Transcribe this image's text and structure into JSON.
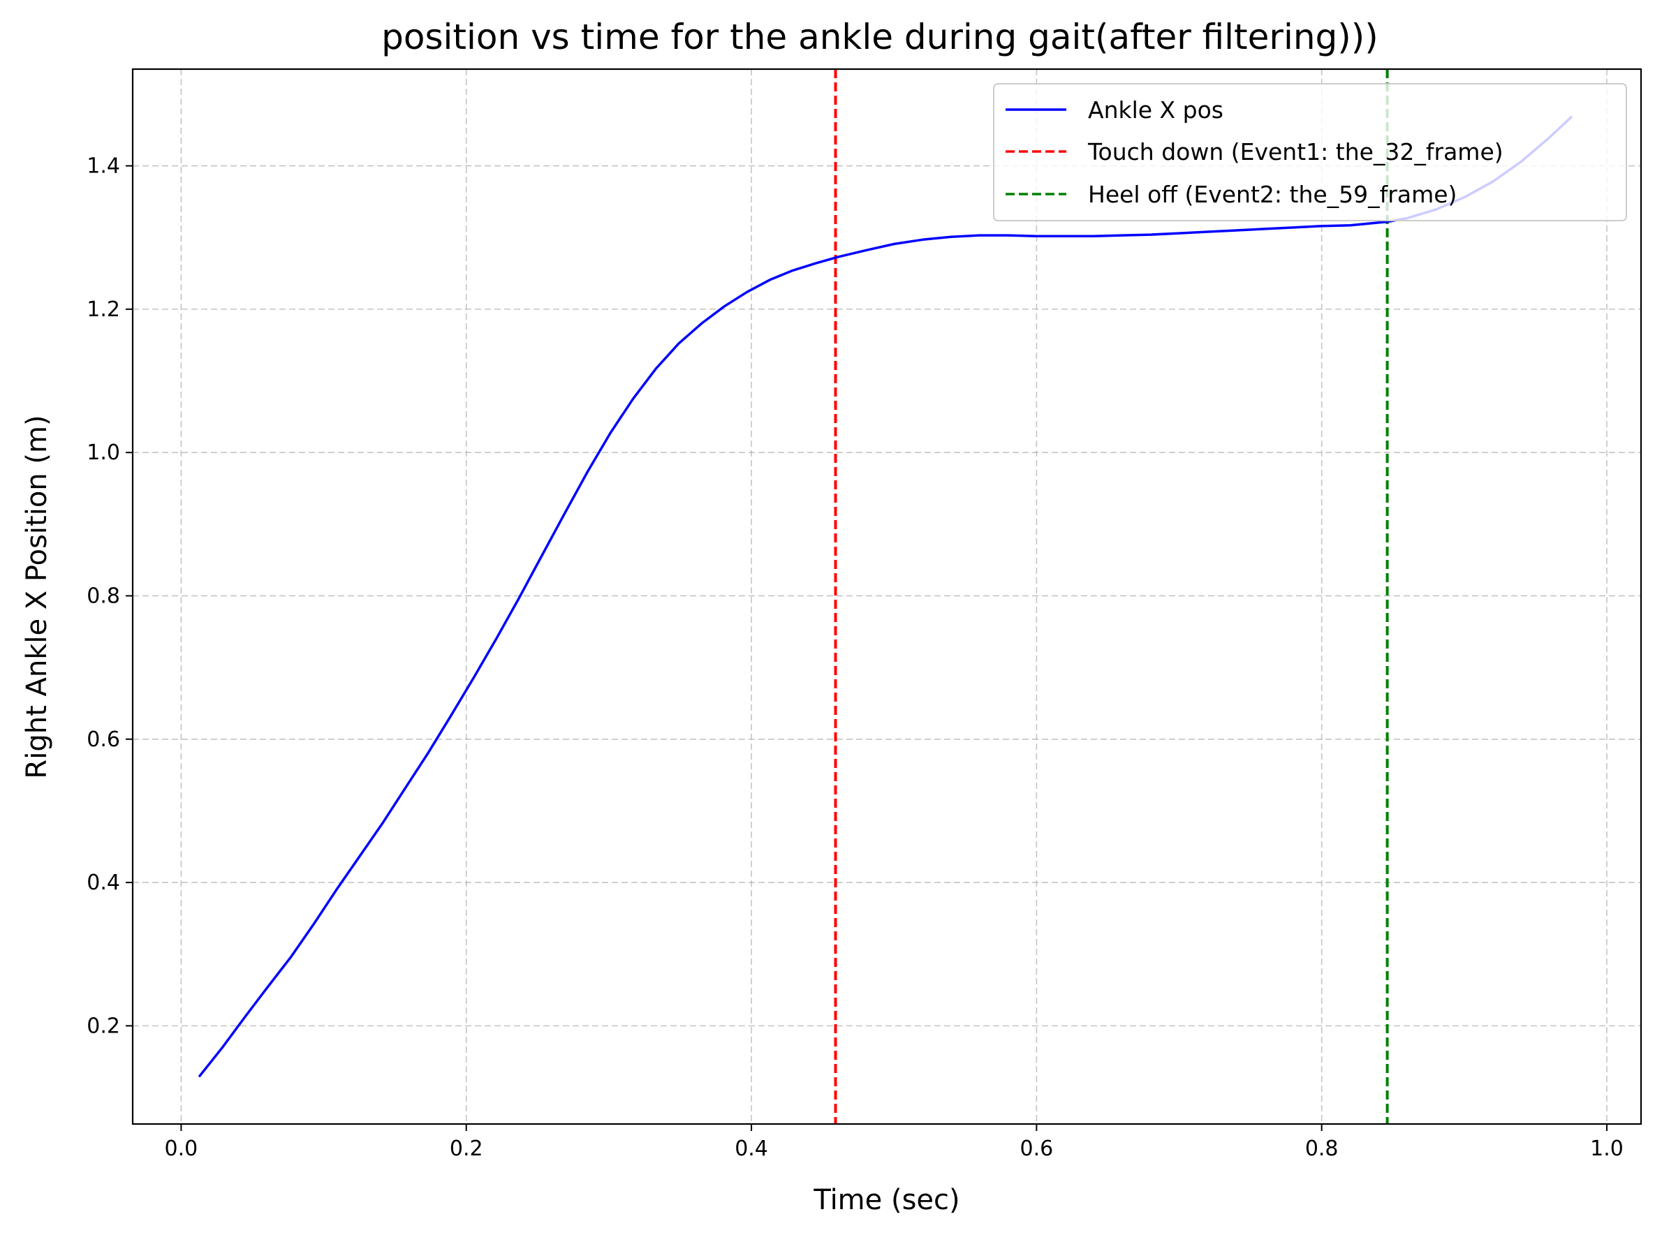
{
  "chart_data": {
    "type": "line",
    "title": "position vs time for the ankle during gait(after filtering)))",
    "xlabel": "Time (sec)",
    "ylabel": "Right Ankle X Position (m)",
    "xlim": [
      -0.034,
      1.024
    ],
    "ylim": [
      0.063,
      1.535
    ],
    "xticks": [
      0.0,
      0.2,
      0.4,
      0.6,
      0.8,
      1.0
    ],
    "xtick_labels": [
      "0.0",
      "0.2",
      "0.4",
      "0.6",
      "0.8",
      "1.0"
    ],
    "yticks": [
      0.2,
      0.4,
      0.6,
      0.8,
      1.0,
      1.2,
      1.4
    ],
    "ytick_labels": [
      "0.2",
      "0.4",
      "0.6",
      "0.8",
      "1.0",
      "1.2",
      "1.4"
    ],
    "grid": true,
    "legend_position": "top-right",
    "series": [
      {
        "name": "Ankle X pos",
        "color": "#0000ff",
        "style": "solid",
        "x": [
          0.013,
          0.029,
          0.045,
          0.061,
          0.077,
          0.093,
          0.109,
          0.125,
          0.141,
          0.157,
          0.173,
          0.189,
          0.205,
          0.221,
          0.237,
          0.253,
          0.269,
          0.285,
          0.301,
          0.317,
          0.333,
          0.349,
          0.365,
          0.381,
          0.397,
          0.413,
          0.429,
          0.445,
          0.461,
          0.48,
          0.5,
          0.52,
          0.54,
          0.56,
          0.58,
          0.6,
          0.62,
          0.64,
          0.66,
          0.68,
          0.7,
          0.72,
          0.74,
          0.76,
          0.78,
          0.8,
          0.82,
          0.846,
          0.86,
          0.88,
          0.9,
          0.92,
          0.94,
          0.96,
          0.975
        ],
        "y": [
          0.13,
          0.17,
          0.213,
          0.255,
          0.296,
          0.342,
          0.39,
          0.436,
          0.482,
          0.531,
          0.58,
          0.632,
          0.685,
          0.74,
          0.797,
          0.856,
          0.915,
          0.973,
          1.027,
          1.075,
          1.117,
          1.152,
          1.18,
          1.204,
          1.224,
          1.241,
          1.254,
          1.264,
          1.273,
          1.282,
          1.291,
          1.297,
          1.301,
          1.303,
          1.303,
          1.302,
          1.302,
          1.302,
          1.303,
          1.304,
          1.306,
          1.308,
          1.31,
          1.312,
          1.314,
          1.316,
          1.317,
          1.322,
          1.327,
          1.339,
          1.356,
          1.378,
          1.406,
          1.44,
          1.468
        ]
      }
    ],
    "vlines": [
      {
        "name": "Touch down (Event1: the_32_frame)",
        "x": 0.459,
        "color": "#ff0000",
        "style": "dashed"
      },
      {
        "name": "Heel off (Event2: the_59_frame)",
        "x": 0.846,
        "color": "#008000",
        "style": "dashed"
      }
    ]
  }
}
